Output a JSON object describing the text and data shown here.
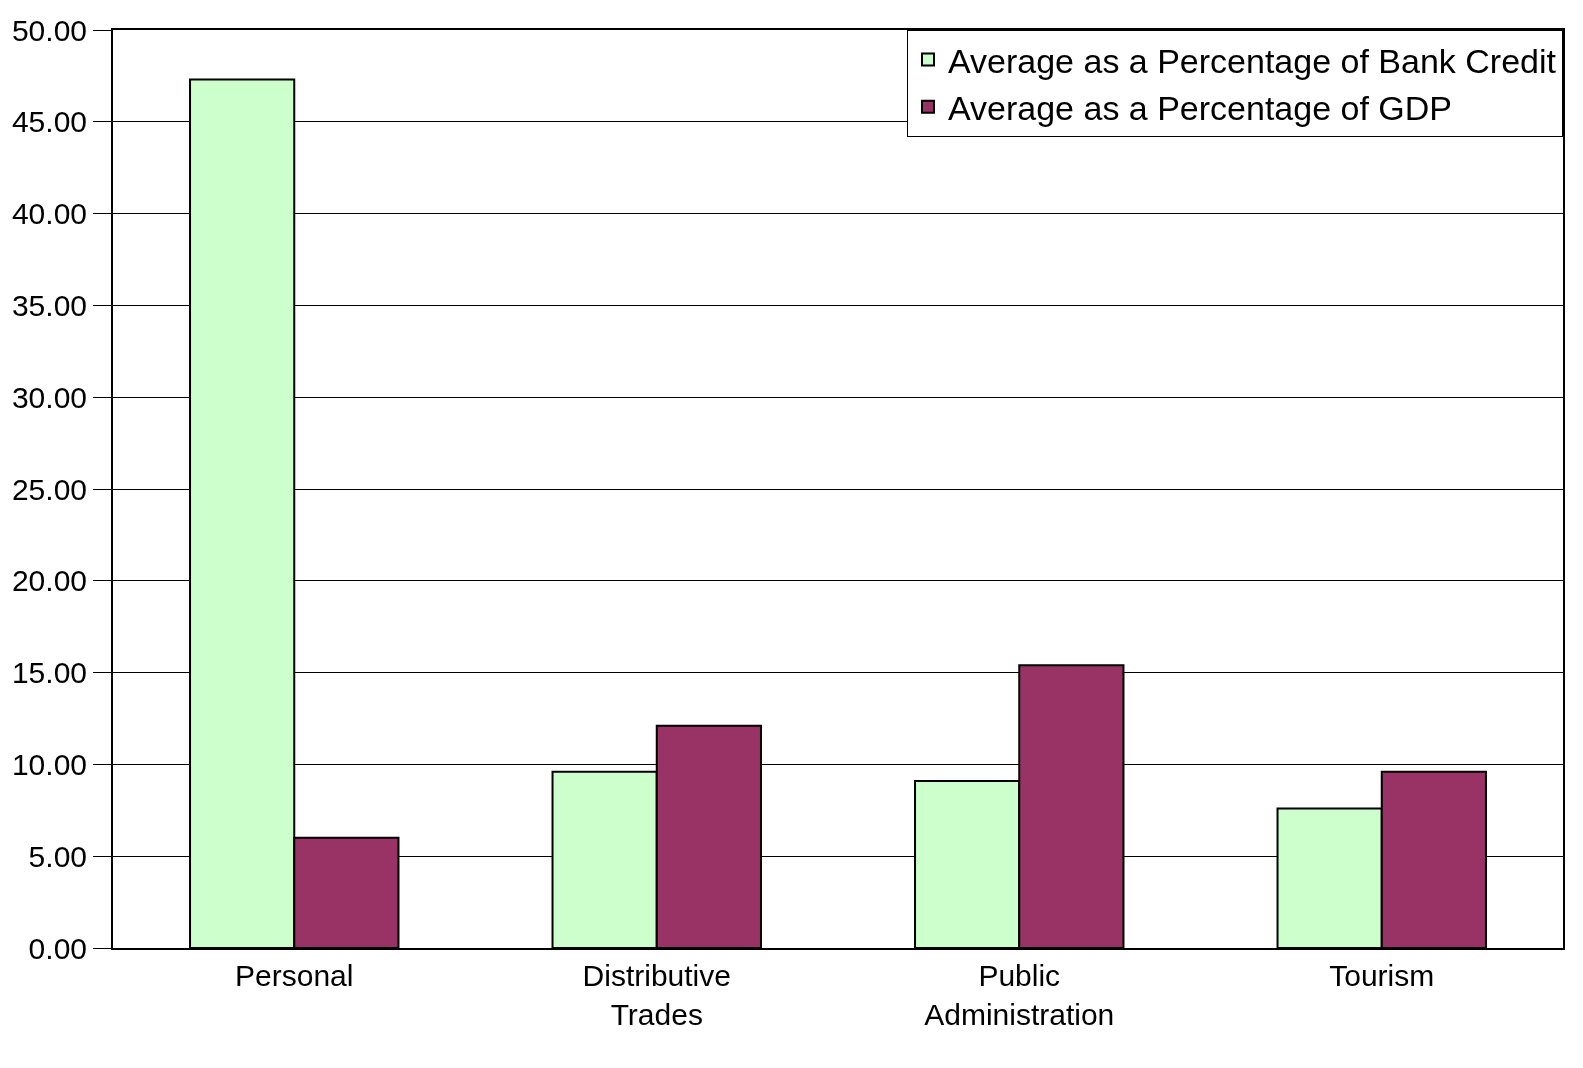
{
  "chart_data": {
    "type": "bar",
    "categories": [
      "Personal",
      "Distributive Trades",
      "Public Administration",
      "Tourism"
    ],
    "series": [
      {
        "name": "Average as a Percentage of Bank Credit",
        "color": "#ccffcc",
        "values": [
          47.3,
          9.6,
          9.1,
          7.6
        ]
      },
      {
        "name": "Average as a Percentage of GDP",
        "color": "#993366",
        "values": [
          6.0,
          12.1,
          15.4,
          9.6
        ]
      }
    ],
    "ylim": [
      0,
      50
    ],
    "yticks": [
      {
        "value": 0,
        "label": "0.00"
      },
      {
        "value": 5,
        "label": "5.00"
      },
      {
        "value": 10,
        "label": "10.00"
      },
      {
        "value": 15,
        "label": "15.00"
      },
      {
        "value": 20,
        "label": "20.00"
      },
      {
        "value": 25,
        "label": "25.00"
      },
      {
        "value": 30,
        "label": "30.00"
      },
      {
        "value": 35,
        "label": "35.00"
      },
      {
        "value": 40,
        "label": "40.00"
      },
      {
        "value": 45,
        "label": "45.00"
      },
      {
        "value": 50,
        "label": "50.00"
      }
    ],
    "grid": "y",
    "legend": "top right"
  }
}
